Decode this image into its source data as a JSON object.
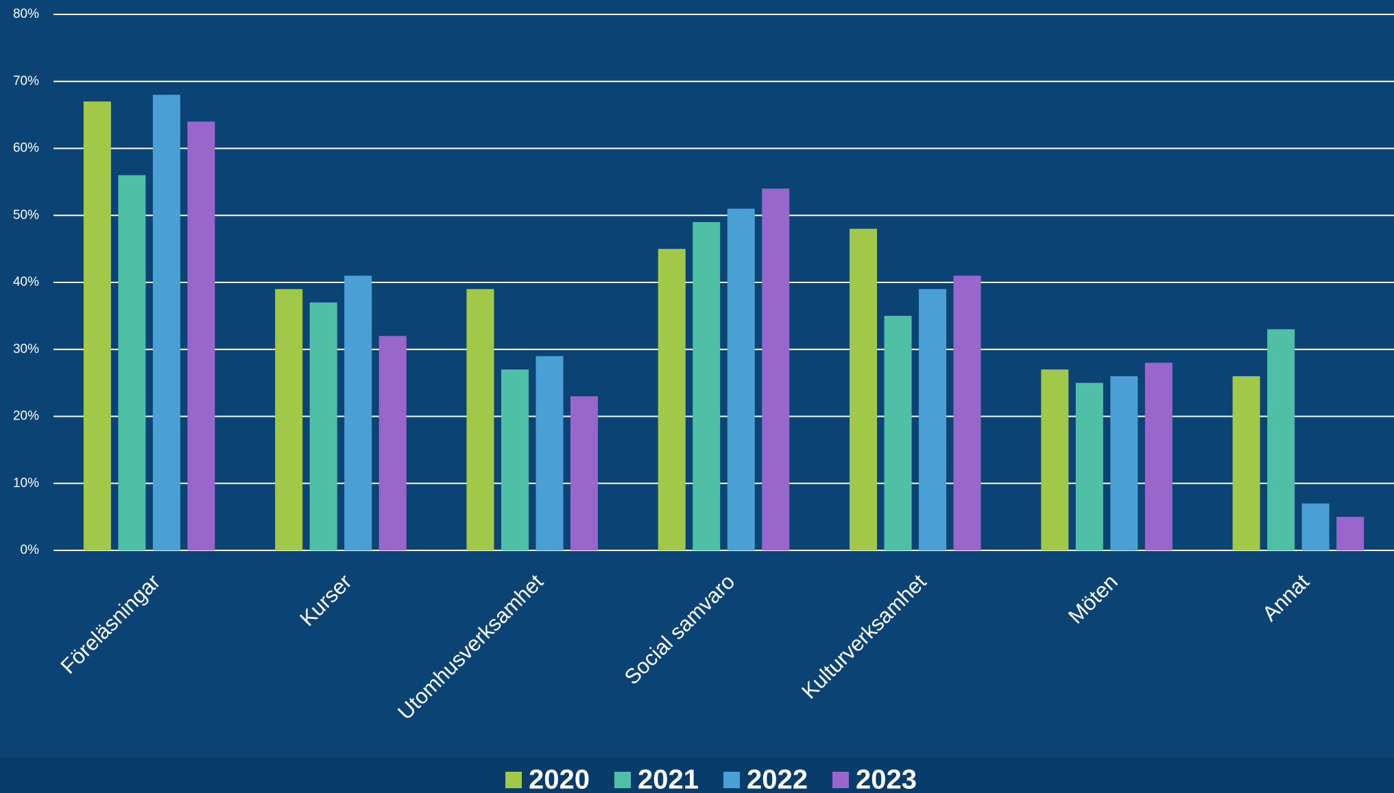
{
  "chart_data": {
    "type": "bar",
    "categories": [
      "Föreläsningar",
      "Kurser",
      "Utomhusverksamhet",
      "Social samvaro",
      "Kulturverksamhet",
      "Möten",
      "Annat"
    ],
    "series": [
      {
        "name": "2020",
        "color": "#a2c84a",
        "values": [
          67,
          39,
          39,
          45,
          48,
          27,
          26
        ]
      },
      {
        "name": "2021",
        "color": "#4fbfa5",
        "values": [
          56,
          37,
          27,
          49,
          35,
          25,
          33
        ]
      },
      {
        "name": "2022",
        "color": "#4a9fd4",
        "values": [
          68,
          41,
          29,
          51,
          39,
          26,
          7
        ]
      },
      {
        "name": "2023",
        "color": "#9966cc",
        "values": [
          64,
          32,
          23,
          54,
          41,
          28,
          5
        ]
      }
    ],
    "ylim": [
      0,
      80
    ],
    "yticks": [
      {
        "value": 0,
        "label": "0%"
      },
      {
        "value": 10,
        "label": "10%"
      },
      {
        "value": 20,
        "label": "20%"
      },
      {
        "value": 30,
        "label": "30%"
      },
      {
        "value": 40,
        "label": "40%"
      },
      {
        "value": 50,
        "label": "50%"
      },
      {
        "value": 60,
        "label": "60%"
      },
      {
        "value": 70,
        "label": "70%"
      },
      {
        "value": 80,
        "label": "80%"
      }
    ],
    "grid": true,
    "legend": "bottom"
  }
}
